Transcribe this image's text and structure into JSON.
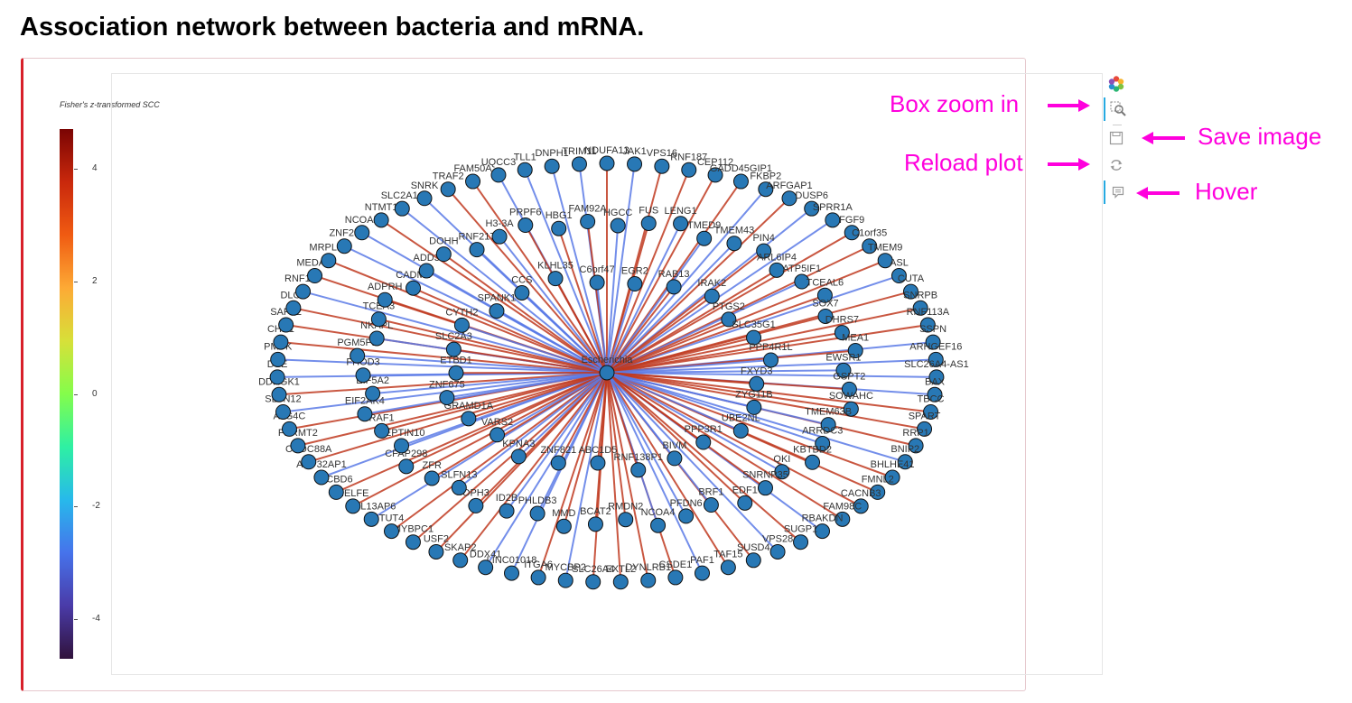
{
  "title": "Association network between bacteria and mRNA.",
  "colorbar": {
    "title": "Fisher's z-transformed SCC",
    "ticks": [
      "4",
      "2",
      "0",
      "-2",
      "-4"
    ],
    "tick_values": [
      4,
      2,
      0,
      -2,
      -4
    ],
    "range": [
      -4.7,
      4.7
    ]
  },
  "toolbar": {
    "tools": [
      {
        "name": "bokeh-logo-icon",
        "active": false
      },
      {
        "name": "box-zoom-icon",
        "active": true
      },
      {
        "name": "save-icon",
        "active": false
      },
      {
        "name": "reset-icon",
        "active": false
      },
      {
        "name": "hover-icon",
        "active": true
      }
    ]
  },
  "annotations": {
    "box_zoom": "Box zoom in",
    "save": "Save image",
    "reload": "Reload plot",
    "hover": "Hover"
  },
  "colors": {
    "positive_edge": "#c03a20",
    "negative_edge": "#5a7ae6",
    "node_fill": "#2878b5",
    "accent": "#ff00dd"
  },
  "network": {
    "center": "Escherichia",
    "nodes": [
      {
        "label": "NDUFA13",
        "s": 1
      },
      {
        "label": "JAK1",
        "s": -1
      },
      {
        "label": "VPS16",
        "s": 1
      },
      {
        "label": "RNF187",
        "s": 1
      },
      {
        "label": "CEP112",
        "s": 1
      },
      {
        "label": "GADD45GIP1",
        "s": 1
      },
      {
        "label": "FKBP2",
        "s": -1
      },
      {
        "label": "ARFGAP1",
        "s": 1
      },
      {
        "label": "DUSP6",
        "s": -1
      },
      {
        "label": "SPRR1A",
        "s": -1
      },
      {
        "label": "FGF9",
        "s": 1
      },
      {
        "label": "C1orf35",
        "s": 1
      },
      {
        "label": "TMEM9",
        "s": 1
      },
      {
        "label": "ASL",
        "s": -1
      },
      {
        "label": "CUTA",
        "s": 1
      },
      {
        "label": "SNRPB",
        "s": 1
      },
      {
        "label": "RNF113A",
        "s": 1
      },
      {
        "label": "SSPN",
        "s": -1
      },
      {
        "label": "ARHGEF16",
        "s": -1
      },
      {
        "label": "SLC26A4-AS1",
        "s": -1
      },
      {
        "label": "BAX",
        "s": -1
      },
      {
        "label": "TBCC",
        "s": 1
      },
      {
        "label": "SPART",
        "s": 1
      },
      {
        "label": "RRP1",
        "s": 1
      },
      {
        "label": "BNIP2",
        "s": -1
      },
      {
        "label": "BHLHE41",
        "s": 1
      },
      {
        "label": "FMNL2",
        "s": 1
      },
      {
        "label": "CACNB3",
        "s": 1
      },
      {
        "label": "FAM98C",
        "s": 1
      },
      {
        "label": "RBAKDN",
        "s": -1
      },
      {
        "label": "SUGP1",
        "s": 1
      },
      {
        "label": "VPS28",
        "s": -1
      },
      {
        "label": "SUSD4",
        "s": 1
      },
      {
        "label": "TAF15",
        "s": 1
      },
      {
        "label": "PAF1",
        "s": -1
      },
      {
        "label": "CSDE1",
        "s": 1
      },
      {
        "label": "DYNLRB1",
        "s": 1
      },
      {
        "label": "EXTL2",
        "s": 1
      },
      {
        "label": "SLC26A4",
        "s": 1
      },
      {
        "label": "MYCBP2",
        "s": -1
      },
      {
        "label": "ITGA6",
        "s": 1
      },
      {
        "label": "LINC01018",
        "s": -1
      },
      {
        "label": "DDX41",
        "s": -1
      },
      {
        "label": "SKAP2",
        "s": 1
      },
      {
        "label": "USF2",
        "s": 1
      },
      {
        "label": "MYBPC1",
        "s": 1
      },
      {
        "label": "TUT4",
        "s": 1
      },
      {
        "label": "RPL13AP6",
        "s": -1
      },
      {
        "label": "NELFE",
        "s": 1
      },
      {
        "label": "ACBD6",
        "s": 1
      },
      {
        "label": "ANP32AP1",
        "s": -1
      },
      {
        "label": "CCDC88A",
        "s": 1
      },
      {
        "label": "FERMT2",
        "s": 1
      },
      {
        "label": "ATG4C",
        "s": 1
      },
      {
        "label": "SLFN12",
        "s": -1
      },
      {
        "label": "DDRGK1",
        "s": 1
      },
      {
        "label": "DSE",
        "s": -1
      },
      {
        "label": "PMVK",
        "s": -1
      },
      {
        "label": "CHN1",
        "s": 1
      },
      {
        "label": "SAFB2",
        "s": 1
      },
      {
        "label": "DLG3",
        "s": 1
      },
      {
        "label": "RNF145",
        "s": -1
      },
      {
        "label": "MEDAG",
        "s": 1
      },
      {
        "label": "MRPL14",
        "s": 1
      },
      {
        "label": "ZNF25",
        "s": -1
      },
      {
        "label": "NCOA7",
        "s": -1
      },
      {
        "label": "NTMT1",
        "s": 1
      },
      {
        "label": "SLC2A14",
        "s": -1
      },
      {
        "label": "SNRK",
        "s": -1
      },
      {
        "label": "TRAF2",
        "s": 1
      },
      {
        "label": "FAM50A",
        "s": 1
      },
      {
        "label": "UQCC3",
        "s": -1
      },
      {
        "label": "TLL1",
        "s": -1
      },
      {
        "label": "DNPH1",
        "s": -1
      },
      {
        "label": "TRIM11",
        "s": -1
      },
      {
        "label": "HGCC",
        "s": -1
      },
      {
        "label": "FUS",
        "s": 1
      },
      {
        "label": "LENG1",
        "s": -1
      },
      {
        "label": "TMED9",
        "s": -1
      },
      {
        "label": "TMEM43",
        "s": -1
      },
      {
        "label": "PIN4",
        "s": 1
      },
      {
        "label": "ARL6IP4",
        "s": 1
      },
      {
        "label": "ATP5IF1",
        "s": -1
      },
      {
        "label": "TCEAL6",
        "s": 1
      },
      {
        "label": "SOX7",
        "s": 1
      },
      {
        "label": "DHRS7",
        "s": 1
      },
      {
        "label": "MEA1",
        "s": 1
      },
      {
        "label": "EWSR1",
        "s": -1
      },
      {
        "label": "GSPT2",
        "s": 1
      },
      {
        "label": "SOWAHC",
        "s": 1
      },
      {
        "label": "TMEM63B",
        "s": -1
      },
      {
        "label": "ARRDC3",
        "s": -1
      },
      {
        "label": "KBTBD2",
        "s": 1
      },
      {
        "label": "QKI",
        "s": -1
      },
      {
        "label": "SNRNP35",
        "s": 1
      },
      {
        "label": "EDF1",
        "s": 1
      },
      {
        "label": "BRF1",
        "s": -1
      },
      {
        "label": "PFDN6",
        "s": -1
      },
      {
        "label": "NCOA4",
        "s": -1
      },
      {
        "label": "RMDN2",
        "s": 1
      },
      {
        "label": "BCAT2",
        "s": 1
      },
      {
        "label": "MMD",
        "s": 1
      },
      {
        "label": "PHLDB3",
        "s": -1
      },
      {
        "label": "ID2B",
        "s": -1
      },
      {
        "label": "OPH3",
        "s": 1
      },
      {
        "label": "SLFN13",
        "s": -1
      },
      {
        "label": "ZFR",
        "s": 1
      },
      {
        "label": "CFAP298",
        "s": 1
      },
      {
        "label": "SEPTIN10",
        "s": -1
      },
      {
        "label": "RAF1",
        "s": 1
      },
      {
        "label": "EIF2AK4",
        "s": -1
      },
      {
        "label": "EIF5A2",
        "s": -1
      },
      {
        "label": "FHOD3",
        "s": -1
      },
      {
        "label": "PGM5P2",
        "s": -1
      },
      {
        "label": "NKAPL",
        "s": -1
      },
      {
        "label": "TCEA3",
        "s": 1
      },
      {
        "label": "ADPRH",
        "s": 1
      },
      {
        "label": "CADM1",
        "s": 1
      },
      {
        "label": "ADD3",
        "s": -1
      },
      {
        "label": "DOHH",
        "s": 1
      },
      {
        "label": "RNF217",
        "s": -1
      },
      {
        "label": "H3-3A",
        "s": -1
      },
      {
        "label": "PRPF6",
        "s": 1
      },
      {
        "label": "HBG1",
        "s": 1
      },
      {
        "label": "FAM92A",
        "s": 1
      },
      {
        "label": "EGR2",
        "s": -1
      },
      {
        "label": "RAB13",
        "s": 1
      },
      {
        "label": "IRAK2",
        "s": 1
      },
      {
        "label": "PTGS2",
        "s": 1
      },
      {
        "label": "SLC35G1",
        "s": 1
      },
      {
        "label": "PPP4R1L",
        "s": -1
      },
      {
        "label": "FXYD3",
        "s": 1
      },
      {
        "label": "ZYG11B",
        "s": -1
      },
      {
        "label": "UBE2NL",
        "s": -1
      },
      {
        "label": "PPP3R1",
        "s": 1
      },
      {
        "label": "BIVM",
        "s": -1
      },
      {
        "label": "RNF138P1",
        "s": 1
      },
      {
        "label": "ABC1D5",
        "s": 1
      },
      {
        "label": "ZNF821",
        "s": 1
      },
      {
        "label": "KPNA3",
        "s": -1
      },
      {
        "label": "VARS2",
        "s": -1
      },
      {
        "label": "GRAMD1A",
        "s": 1
      },
      {
        "label": "ZNF675",
        "s": -1
      },
      {
        "label": "ETBD1",
        "s": 1
      },
      {
        "label": "SLC2A3",
        "s": 1
      },
      {
        "label": "CYTH2",
        "s": -1
      },
      {
        "label": "SPANK1",
        "s": -1
      },
      {
        "label": "CCS",
        "s": -1
      },
      {
        "label": "KLHL35",
        "s": 1
      },
      {
        "label": "C6orf47",
        "s": -1
      }
    ]
  }
}
